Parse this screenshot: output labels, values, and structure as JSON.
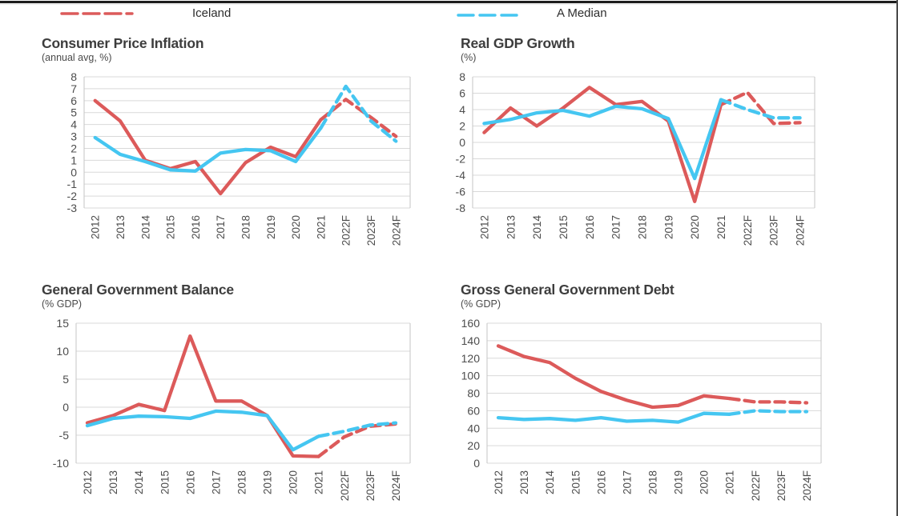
{
  "legend": {
    "items": [
      {
        "label": "Iceland",
        "color": "#dc5a5a"
      },
      {
        "label": "A Median",
        "color": "#45c6f1"
      }
    ]
  },
  "chart_data": [
    {
      "type": "line",
      "title": "Consumer Price Inflation",
      "subtitle": "(annual avg, %)",
      "ylim": [
        -3,
        8
      ],
      "ytick_step": 1,
      "grid": "horizontal",
      "forecast_start_index": 9,
      "categories": [
        "2012",
        "2013",
        "2014",
        "2015",
        "2016",
        "2017",
        "2018",
        "2019",
        "2020",
        "2021",
        "2022F",
        "2023F",
        "2024F"
      ],
      "series": [
        {
          "name": "Iceland",
          "color": "#dc5a5a",
          "values": [
            6.0,
            4.3,
            1.0,
            0.3,
            0.9,
            -1.8,
            0.8,
            2.1,
            1.3,
            4.4,
            6.1,
            4.6,
            3.0
          ]
        },
        {
          "name": "A Median",
          "color": "#45c6f1",
          "values": [
            2.9,
            1.5,
            0.9,
            0.2,
            0.1,
            1.6,
            1.9,
            1.8,
            0.9,
            3.7,
            7.2,
            4.3,
            2.6
          ]
        }
      ]
    },
    {
      "type": "line",
      "title": "Real GDP Growth",
      "subtitle": "(%)",
      "ylim": [
        -8,
        8
      ],
      "ytick_step": 2,
      "grid": "horizontal",
      "forecast_start_index": 9,
      "categories": [
        "2012",
        "2013",
        "2014",
        "2015",
        "2016",
        "2017",
        "2018",
        "2019",
        "2020",
        "2021",
        "2022F",
        "2023F",
        "2024F"
      ],
      "series": [
        {
          "name": "Iceland",
          "color": "#dc5a5a",
          "values": [
            1.2,
            4.2,
            2.0,
            4.2,
            6.7,
            4.6,
            5.0,
            2.6,
            -7.2,
            4.6,
            6.1,
            2.3,
            2.4
          ]
        },
        {
          "name": "A Median",
          "color": "#45c6f1",
          "values": [
            2.3,
            2.8,
            3.6,
            3.9,
            3.2,
            4.4,
            4.1,
            2.9,
            -4.4,
            5.2,
            4.0,
            3.0,
            3.0
          ]
        }
      ]
    },
    {
      "type": "line",
      "title": "General Government Balance",
      "subtitle": "(% GDP)",
      "ylim": [
        -10,
        15
      ],
      "ytick_step": 5,
      "grid": "horizontal",
      "forecast_start_index": 9,
      "categories": [
        "2012",
        "2013",
        "2014",
        "2015",
        "2016",
        "2017",
        "2018",
        "2019",
        "2020",
        "2021",
        "2022F",
        "2023F",
        "2024F"
      ],
      "series": [
        {
          "name": "Iceland",
          "color": "#dc5a5a",
          "values": [
            -2.8,
            -1.5,
            0.5,
            -0.6,
            12.7,
            1.1,
            1.1,
            -1.5,
            -8.7,
            -8.8,
            -5.3,
            -3.4,
            -3.0
          ]
        },
        {
          "name": "A Median",
          "color": "#45c6f1",
          "values": [
            -3.3,
            -2.0,
            -1.6,
            -1.7,
            -2.0,
            -0.7,
            -0.9,
            -1.5,
            -7.6,
            -5.2,
            -4.3,
            -3.2,
            -2.8
          ]
        }
      ]
    },
    {
      "type": "line",
      "title": "Gross General Government Debt",
      "subtitle": "(% GDP)",
      "ylim": [
        0,
        160
      ],
      "ytick_step": 20,
      "grid": "horizontal",
      "forecast_start_index": 9,
      "categories": [
        "2012",
        "2013",
        "2014",
        "2015",
        "2016",
        "2017",
        "2018",
        "2019",
        "2020",
        "2021",
        "2022F",
        "2023F",
        "2024F"
      ],
      "series": [
        {
          "name": "Iceland",
          "color": "#dc5a5a",
          "values": [
            134,
            122,
            115,
            97,
            82,
            72,
            64,
            66,
            77,
            74,
            70,
            70,
            69
          ]
        },
        {
          "name": "A Median",
          "color": "#45c6f1",
          "values": [
            52,
            50,
            51,
            49,
            52,
            48,
            49,
            47,
            57,
            56,
            60,
            59,
            59
          ]
        }
      ]
    }
  ]
}
